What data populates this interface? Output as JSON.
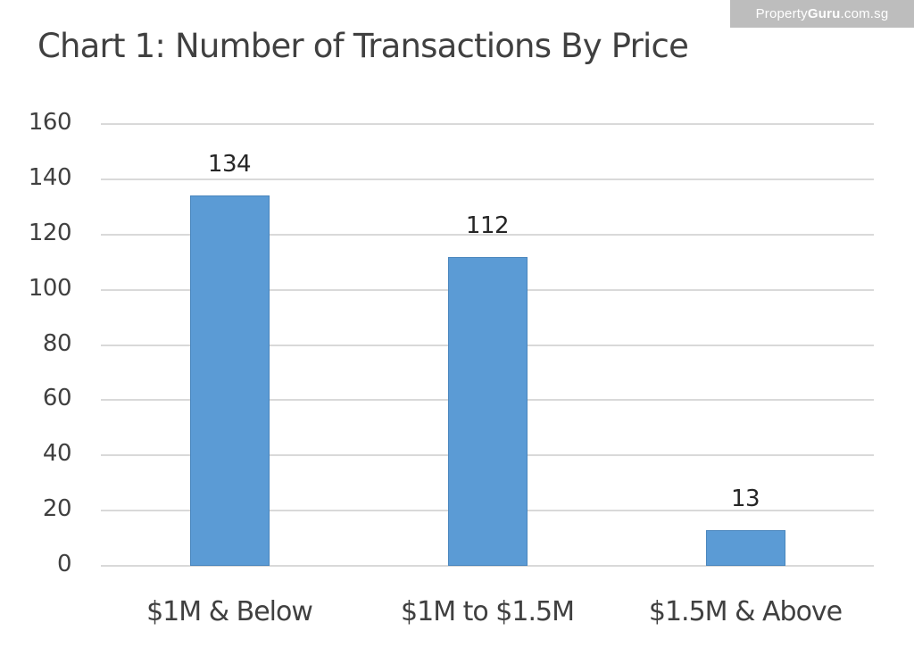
{
  "watermark": {
    "part1": "Property",
    "part2": "Guru",
    "part3": ".com.sg"
  },
  "colors": {
    "bar": "#5b9bd5",
    "grid": "#d9d9d9",
    "text": "#404040",
    "watermark_bg": "#bdbdbd"
  },
  "chart_data": {
    "type": "bar",
    "title": "Chart 1: Number of Transactions By Price",
    "xlabel": "",
    "ylabel": "",
    "categories": [
      "$1M & Below",
      "$1M to $1.5M",
      "$1.5M & Above"
    ],
    "values": [
      134,
      112,
      13
    ],
    "data_labels": [
      "134",
      "112",
      "13"
    ],
    "ylim": [
      0,
      160
    ],
    "yticks": [
      "0",
      "20",
      "40",
      "60",
      "80",
      "100",
      "120",
      "140",
      "160"
    ],
    "grid": true,
    "legend": null
  }
}
